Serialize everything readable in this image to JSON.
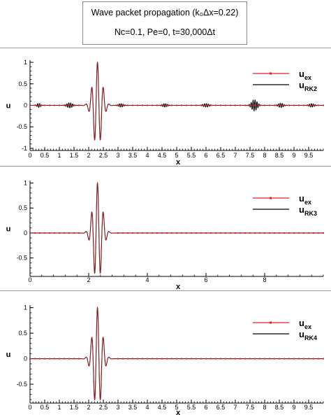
{
  "header": {
    "title_line_1": "Wave packet propagation (k₀Δx=0.22)",
    "title_line_2": "Nc=0.1, Pe=0, t=30,000Δt"
  },
  "colors": {
    "exact": "#e02020",
    "numerical": "#000000"
  },
  "chart_data": [
    {
      "type": "line",
      "xlabel": "x",
      "ylabel": "u",
      "xlim": [
        0,
        10
      ],
      "ylim": [
        -1.05,
        1.05
      ],
      "xticks": [
        0,
        0.5,
        1,
        1.5,
        2,
        2.5,
        3,
        3.5,
        4,
        4.5,
        5,
        5.5,
        6,
        6.5,
        7,
        7.5,
        8,
        8.5,
        9,
        9.5
      ],
      "yticks": [
        -1,
        -0.5,
        0,
        0.5,
        1
      ],
      "legend_position": "top-right",
      "series": [
        {
          "name": "u_ex",
          "label_main": "u",
          "label_sub": "ex",
          "color": "#e02020"
        },
        {
          "name": "u_RK2",
          "label_main": "u",
          "label_sub": "RK2",
          "color": "#000000"
        }
      ],
      "packet": {
        "center": 2.3,
        "width": 0.21,
        "amplitude": 1.0,
        "wavenumber": 31.4
      },
      "spurious_bursts": [
        {
          "center": 0.3,
          "width": 0.08,
          "amplitude": 0.05
        },
        {
          "center": 1.35,
          "width": 0.13,
          "amplitude": 0.06
        },
        {
          "center": 3.1,
          "width": 0.12,
          "amplitude": 0.04
        },
        {
          "center": 4.6,
          "width": 0.12,
          "amplitude": 0.04
        },
        {
          "center": 6.0,
          "width": 0.14,
          "amplitude": 0.04
        },
        {
          "center": 7.65,
          "width": 0.13,
          "amplitude": 0.13
        },
        {
          "center": 8.55,
          "width": 0.12,
          "amplitude": 0.05
        },
        {
          "center": 9.6,
          "width": 0.12,
          "amplitude": 0.04
        }
      ]
    },
    {
      "type": "line",
      "xlabel": "x",
      "ylabel": "u",
      "xlim": [
        0,
        10
      ],
      "ylim": [
        -0.87,
        1.05
      ],
      "xticks": [
        0,
        2,
        4,
        6,
        8
      ],
      "yticks": [
        -0.5,
        0,
        0.5,
        1
      ],
      "legend_position": "top-right",
      "series": [
        {
          "name": "u_ex",
          "label_main": "u",
          "label_sub": "ex",
          "color": "#e02020"
        },
        {
          "name": "u_RK3",
          "label_main": "u",
          "label_sub": "RK3",
          "color": "#000000"
        }
      ],
      "packet": {
        "center": 2.3,
        "width": 0.21,
        "amplitude": 1.0,
        "wavenumber": 31.4
      },
      "spurious_bursts": []
    },
    {
      "type": "line",
      "xlabel": "x",
      "ylabel": "u",
      "xlim": [
        0,
        10
      ],
      "ylim": [
        -0.87,
        1.05
      ],
      "xticks": [
        0,
        0.5,
        1,
        1.5,
        2,
        2.5,
        3,
        3.5,
        4,
        4.5,
        5,
        5.5,
        6,
        6.5,
        7,
        7.5,
        8,
        8.5,
        9,
        9.5
      ],
      "yticks": [
        -0.5,
        0,
        0.5,
        1
      ],
      "legend_position": "top-right",
      "series": [
        {
          "name": "u_ex",
          "label_main": "u",
          "label_sub": "ex",
          "color": "#e02020"
        },
        {
          "name": "u_RK4",
          "label_main": "u",
          "label_sub": "RK4",
          "color": "#000000"
        }
      ],
      "packet": {
        "center": 2.3,
        "width": 0.21,
        "amplitude": 1.0,
        "wavenumber": 31.4
      },
      "spurious_bursts": []
    }
  ]
}
